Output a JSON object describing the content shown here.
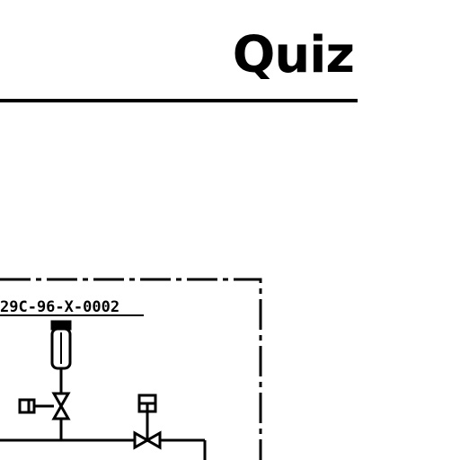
{
  "page": {
    "title": "Quiz"
  },
  "diagram": {
    "line_tag": "29C-96-X-0002"
  }
}
